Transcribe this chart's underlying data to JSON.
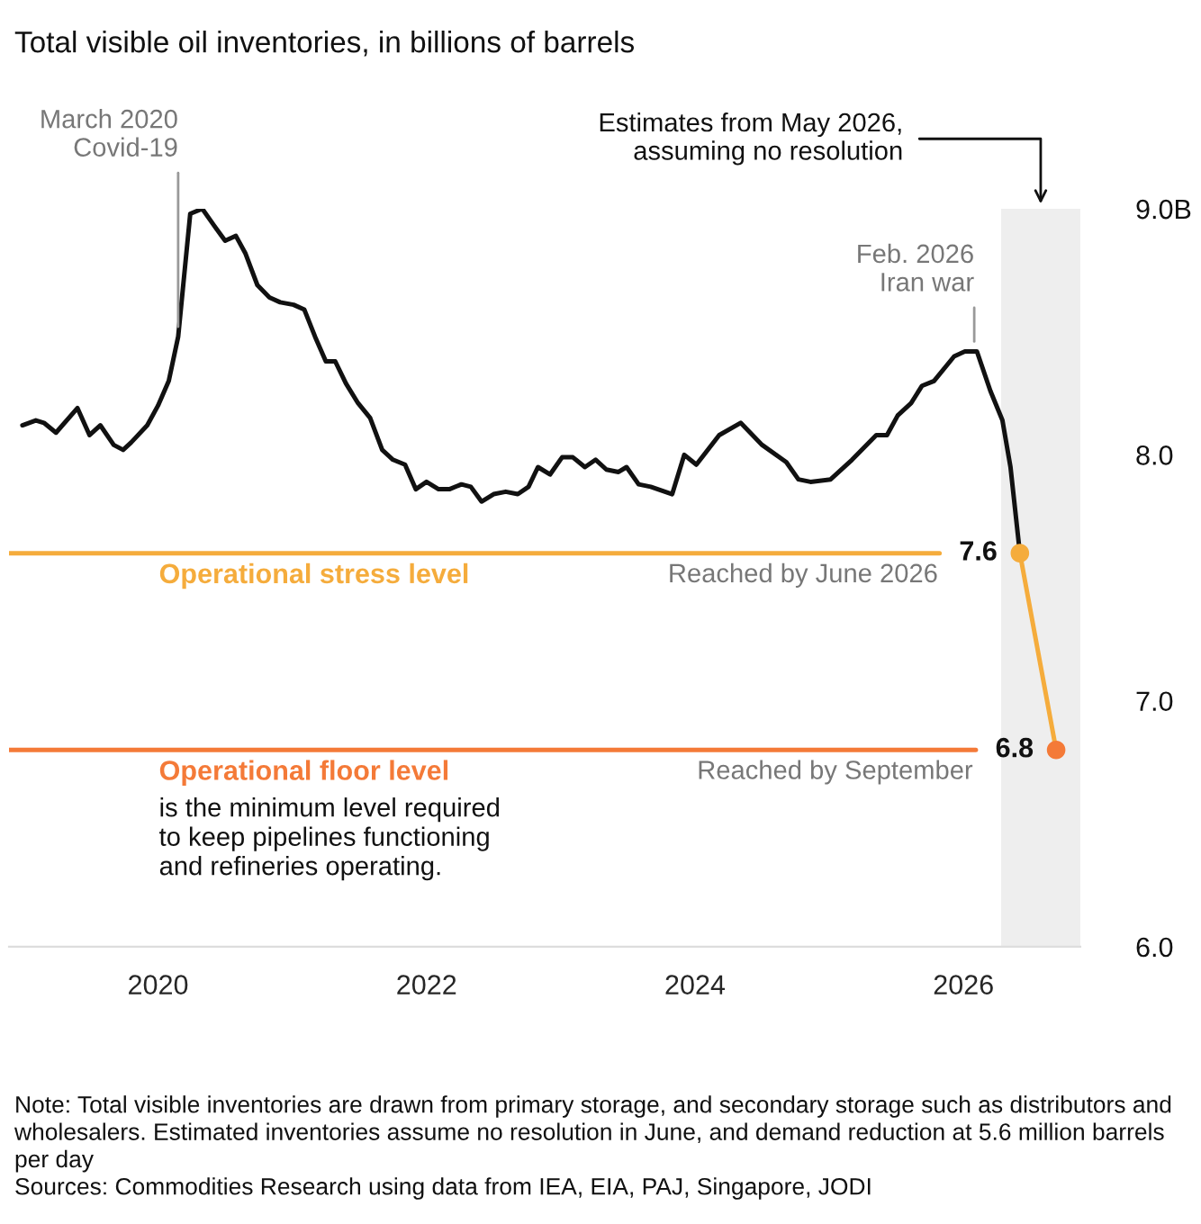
{
  "chart_data": {
    "type": "line",
    "title": "Total visible oil inventories, in billions of barrels",
    "series": [
      {
        "color": "#111111",
        "x": [
          2018.99,
          2019.09,
          2019.15,
          2019.24,
          2019.4,
          2019.49,
          2019.57,
          2019.67,
          2019.74,
          2019.8,
          2019.92,
          2020.0,
          2020.08,
          2020.15,
          2020.24,
          2020.33,
          2020.42,
          2020.5,
          2020.58,
          2020.65,
          2020.74,
          2020.83,
          2020.91,
          2021.01,
          2021.09,
          2021.17,
          2021.25,
          2021.32,
          2021.4,
          2021.49,
          2021.58,
          2021.67,
          2021.75,
          2021.84,
          2021.92,
          2022.0,
          2022.09,
          2022.17,
          2022.26,
          2022.33,
          2022.41,
          2022.5,
          2022.59,
          2022.68,
          2022.76,
          2022.83,
          2022.92,
          2023.01,
          2023.09,
          2023.18,
          2023.26,
          2023.34,
          2023.43,
          2023.49,
          2023.58,
          2023.67,
          2023.83,
          2023.92,
          2024.01,
          2024.18,
          2024.34,
          2024.5,
          2024.68,
          2024.77,
          2024.86,
          2025.01,
          2025.17,
          2025.35,
          2025.43,
          2025.51,
          2025.61,
          2025.69,
          2025.78,
          2025.93,
          2026.01,
          2026.1,
          2026.2,
          2026.29,
          2026.35,
          2026.42
        ],
        "values": [
          8.12,
          8.14,
          8.13,
          8.09,
          8.19,
          8.08,
          8.12,
          8.04,
          8.02,
          8.05,
          8.12,
          8.2,
          8.3,
          8.48,
          8.98,
          9.0,
          8.93,
          8.87,
          8.89,
          8.82,
          8.69,
          8.64,
          8.62,
          8.61,
          8.59,
          8.48,
          8.38,
          8.38,
          8.29,
          8.21,
          8.15,
          8.02,
          7.98,
          7.96,
          7.86,
          7.89,
          7.86,
          7.86,
          7.88,
          7.87,
          7.81,
          7.84,
          7.85,
          7.84,
          7.87,
          7.95,
          7.92,
          7.99,
          7.99,
          7.95,
          7.98,
          7.94,
          7.93,
          7.95,
          7.88,
          7.87,
          7.84,
          8.0,
          7.96,
          8.08,
          8.13,
          8.04,
          7.97,
          7.9,
          7.89,
          7.9,
          7.98,
          8.08,
          8.08,
          8.16,
          8.21,
          8.28,
          8.3,
          8.4,
          8.42,
          8.42,
          8.26,
          8.14,
          7.95,
          7.6
        ]
      },
      {
        "color": "#f5ac3c",
        "colors": [
          "#f5ac3c",
          "#f47a38"
        ],
        "marker": "circle",
        "x": [
          2026.42,
          2026.69
        ],
        "values": [
          7.6,
          6.8
        ],
        "value_labels": [
          "7.6",
          "6.8"
        ]
      }
    ],
    "xlim": [
      2018.89,
      2026.87
    ],
    "xticks": [
      2020,
      2022,
      2024,
      2026
    ],
    "ylim": [
      6.0,
      9.0
    ],
    "yticks": [
      {
        "value": 6,
        "label": "6.0"
      },
      {
        "value": 7,
        "label": "7.0"
      },
      {
        "value": 8,
        "label": "8.0"
      },
      {
        "value": 9,
        "label": "9.0B"
      }
    ],
    "ref_lines": [
      {
        "axis": "y",
        "value": 7.6,
        "label": "Operational stress level",
        "color": "#f5ac3c"
      },
      {
        "axis": "y",
        "value": 6.8,
        "label": "Operational floor level",
        "color": "#f47a38"
      }
    ],
    "bands": [
      {
        "axis": "x",
        "from": 2026.28,
        "to": 2026.87,
        "label": "Estimates from May 2026,\nassuming no resolution",
        "color": "#eeeeee"
      }
    ],
    "annotations": [
      {
        "text": "March 2020\nCovid-19",
        "x": 2020.15,
        "y": 8.48
      },
      {
        "text": "Feb. 2026\nIran war",
        "x": 2026.08,
        "y": 8.42
      },
      {
        "text": "Reached by June 2026",
        "x": 2025.81,
        "y": 7.6
      },
      {
        "text": "Reached by September",
        "x": 2026.07,
        "y": 6.8
      },
      "is the minimum level required\nto keep pipelines functioning\nand refineries operating.",
      "Note: Total visible inventories are drawn from primary storage, and secondary storage such as distributors and wholesalers. Estimated inventories assume no resolution in June, and demand reduction at 5.6 million barrels per day",
      "Sources: Commodities Research using data from IEA, EIA, PAJ, Singapore, JODI"
    ],
    "grid": false,
    "legend": false
  }
}
